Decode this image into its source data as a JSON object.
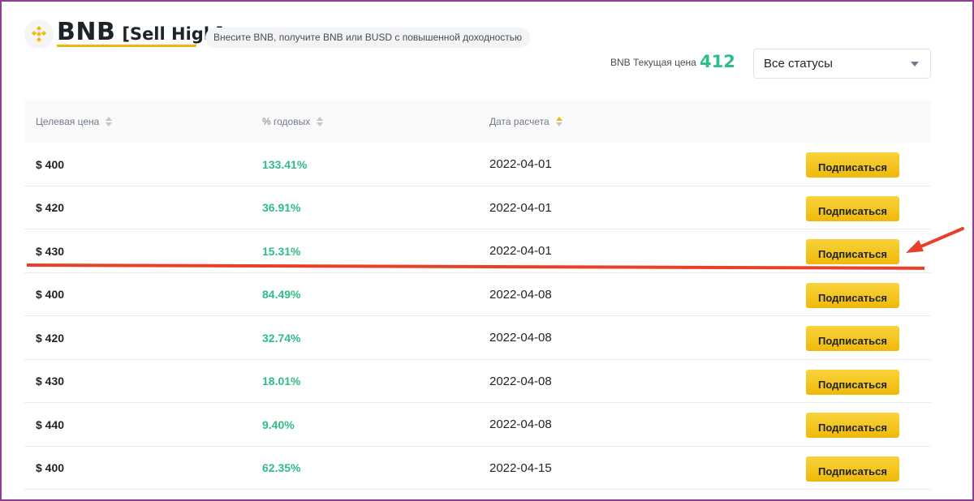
{
  "header": {
    "title": "BNB",
    "subtitle": "[Sell High]",
    "tagline": "Внесите BNB, получите BNB или BUSD с повышенной доходностью",
    "logo_icon": "bnb-logo-icon"
  },
  "price": {
    "label": "BNB Текущая цена",
    "value": "412"
  },
  "status_filter": {
    "selected": "Все статусы"
  },
  "table": {
    "columns": [
      "Целевая цена",
      "% годовых",
      "Дата расчета"
    ],
    "rows": [
      {
        "price": "$ 400",
        "apy": "133.41%",
        "date": "2022-04-01",
        "action": "Подписаться"
      },
      {
        "price": "$ 420",
        "apy": "36.91%",
        "date": "2022-04-01",
        "action": "Подписаться"
      },
      {
        "price": "$ 430",
        "apy": "15.31%",
        "date": "2022-04-01",
        "action": "Подписаться"
      },
      {
        "price": "$ 400",
        "apy": "84.49%",
        "date": "2022-04-08",
        "action": "Подписаться"
      },
      {
        "price": "$ 420",
        "apy": "32.74%",
        "date": "2022-04-08",
        "action": "Подписаться"
      },
      {
        "price": "$ 430",
        "apy": "18.01%",
        "date": "2022-04-08",
        "action": "Подписаться"
      },
      {
        "price": "$ 440",
        "apy": "9.40%",
        "date": "2022-04-08",
        "action": "Подписаться"
      },
      {
        "price": "$ 400",
        "apy": "62.35%",
        "date": "2022-04-15",
        "action": "Подписаться"
      }
    ]
  },
  "colors": {
    "accent": "#f0b90b",
    "positive": "#2ebd85",
    "annotation": "#e8402a",
    "frame": "#8e3d95"
  }
}
